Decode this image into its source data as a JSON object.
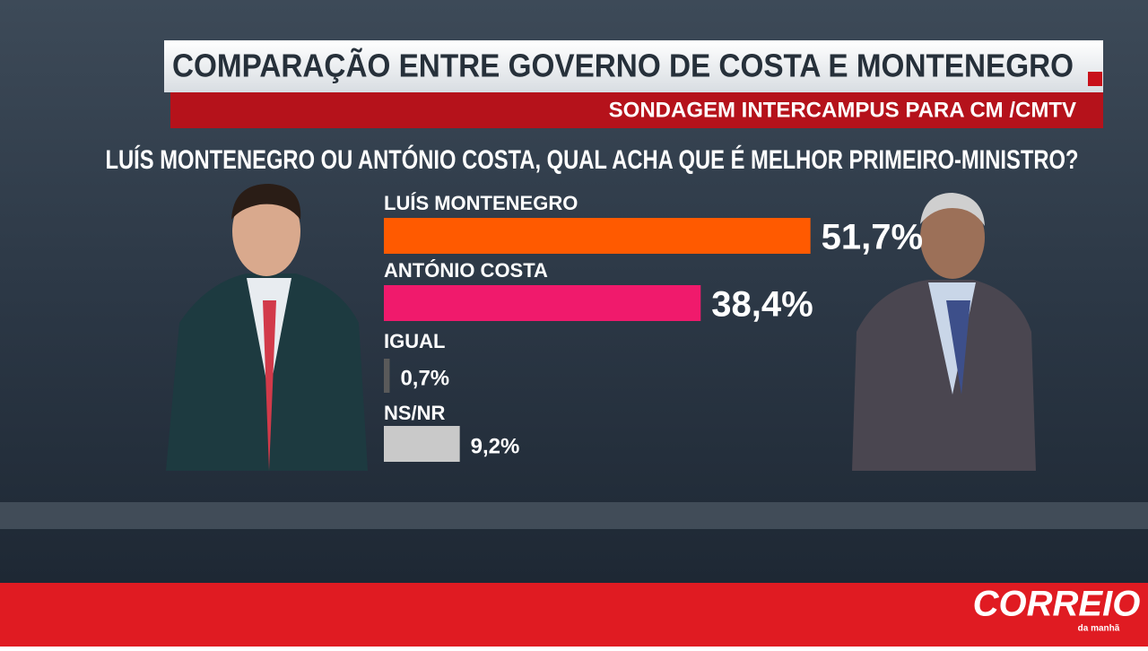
{
  "chart_data": {
    "type": "hbar",
    "title": "COMPARAÇÃO ENTRE GOVERNO DE COSTA E MONTENEGRO",
    "subtitle": "SONDAGEM INTERCAMPUS PARA CM /CMTV",
    "question": "LUÍS MONTENEGRO OU ANTÓNIO COSTA, QUAL ACHA QUE É MELHOR PRIMEIRO-MINISTRO?",
    "categories": [
      "LUÍS MONTENEGRO",
      "ANTÓNIO COSTA",
      "IGUAL",
      "NS/NR"
    ],
    "values": [
      51.7,
      38.4,
      0.7,
      9.2
    ],
    "value_labels": [
      "51,7%",
      "38,4%",
      "0,7%",
      "9,2%"
    ],
    "colors": [
      "#ff5a00",
      "#f01a6c",
      "#5a5a5a",
      "#c9c9c9"
    ]
  },
  "brand": {
    "name": "CORREIO",
    "tagline": "da manhã"
  }
}
